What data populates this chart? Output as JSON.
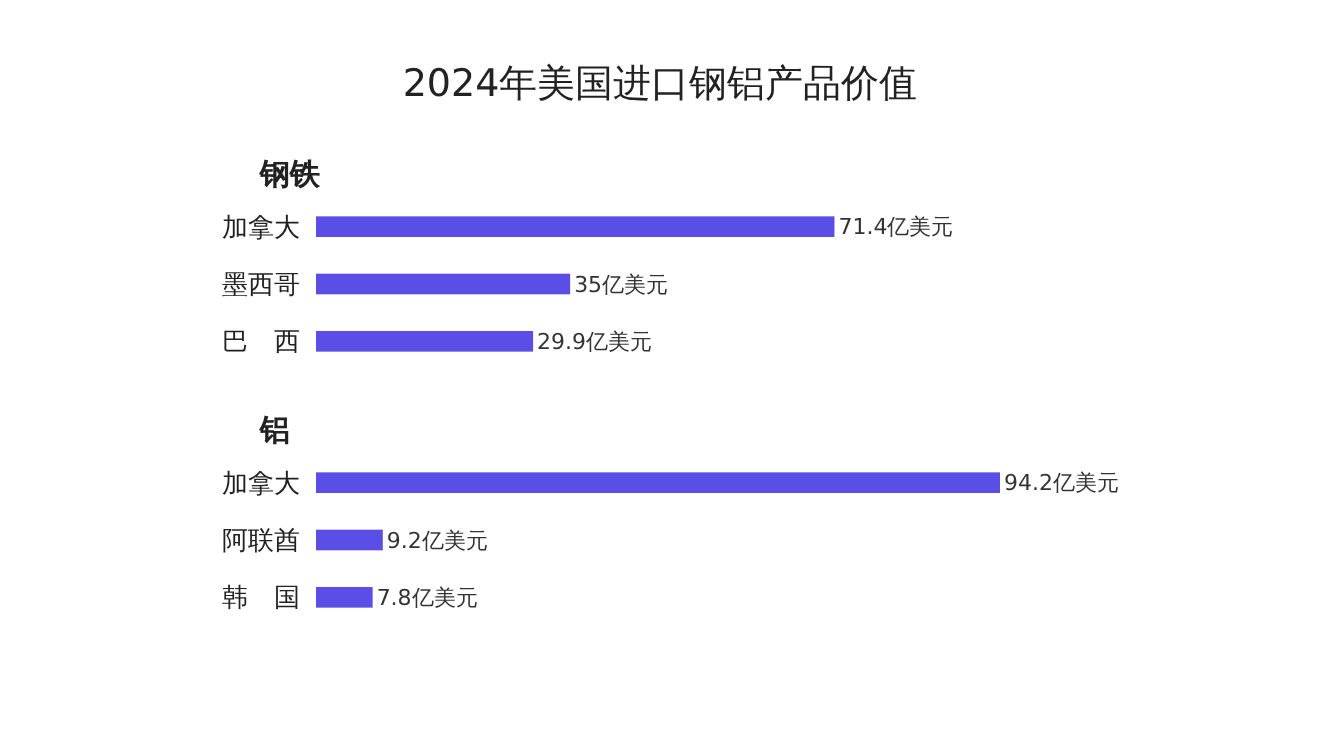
{
  "chart_data": [
    {
      "type": "bar",
      "orientation": "horizontal",
      "title": "2024年美国进口钢铝产品价值",
      "subtitle": "钢铁",
      "categories": [
        "加拿大",
        "墨西哥",
        "巴　西"
      ],
      "values": [
        71.4,
        35,
        29.9
      ],
      "color": "#5b4ee6",
      "value_labels": [
        "71.4亿美元",
        "35亿美元",
        "29.9亿美元"
      ]
    },
    {
      "type": "bar",
      "orientation": "horizontal",
      "subtitle": "铝",
      "categories": [
        "加拿大",
        "阿联酋",
        "韩　国"
      ],
      "values": [
        94.2,
        9.2,
        7.8
      ],
      "color": "#5b4ee6",
      "value_labels": [
        "94.2亿美元",
        "9.2亿美元",
        "7.8亿美元"
      ]
    }
  ]
}
